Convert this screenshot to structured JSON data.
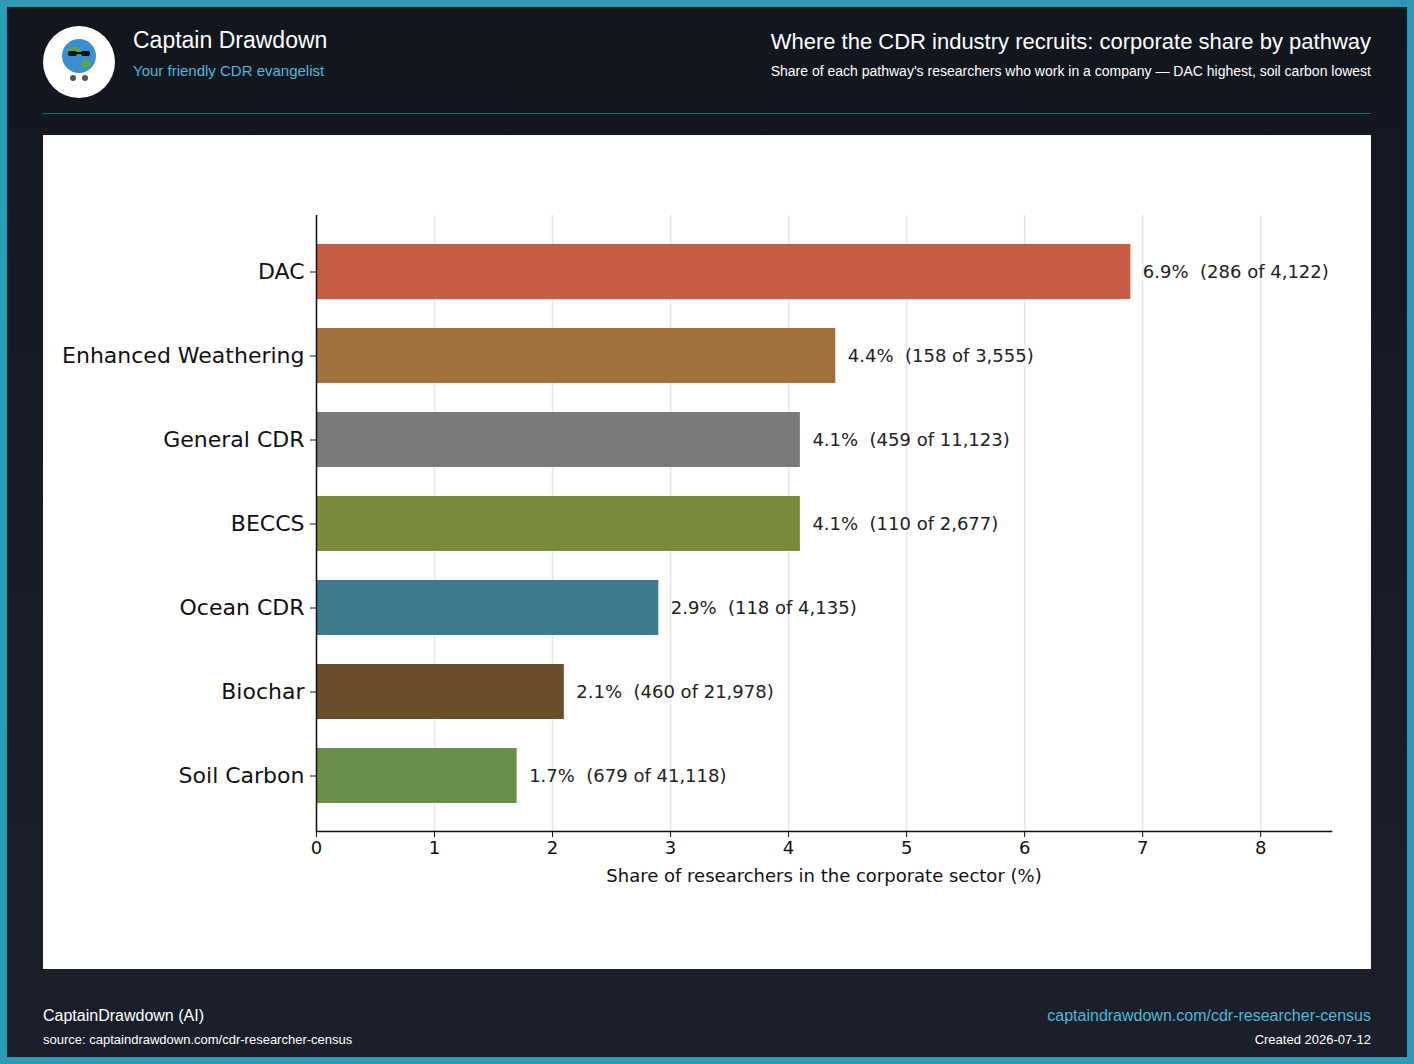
{
  "header": {
    "brand": "Captain Drawdown",
    "tagline": "Your friendly CDR evangelist"
  },
  "footer": {
    "credit": "CaptainDrawdown (AI)",
    "source": "source: captaindrawdown.com/cdr-researcher-census",
    "link": "captaindrawdown.com/cdr-researcher-census",
    "created": "Created 2026-07-12"
  },
  "chart_data": {
    "type": "bar",
    "title": "Where the CDR industry recruits: corporate share by pathway",
    "subtitle": "Share of each pathway's researchers who work in a company — DAC highest, soil carbon lowest",
    "orientation": "horizontal",
    "categories": [
      "DAC",
      "Enhanced Weathering",
      "General CDR",
      "BECCS",
      "Ocean CDR",
      "Biochar",
      "Soil Carbon"
    ],
    "values": [
      6.9,
      4.4,
      4.1,
      4.1,
      2.9,
      2.1,
      1.7
    ],
    "value_labels": [
      "6.9%  (286 of 4,122)",
      "4.4%  (158 of 3,555)",
      "4.1%  (459 of 11,123)",
      "4.1%  (110 of 2,677)",
      "2.9%  (118 of 4,135)",
      "2.1%  (460 of 21,978)",
      "1.7%  (679 of 41,118)"
    ],
    "colors": [
      "#c55c43",
      "#a0703e",
      "#7a7a7a",
      "#7a8b3e",
      "#3d7a8b",
      "#6a4e2b",
      "#6b8e4d"
    ],
    "data_labels": true,
    "xlabel": "Share of researchers in the corporate sector (%)",
    "xlim": [
      0,
      8.6
    ],
    "xticks": [
      0,
      1,
      2,
      3,
      4,
      5,
      6,
      7,
      8
    ],
    "grid": true
  }
}
